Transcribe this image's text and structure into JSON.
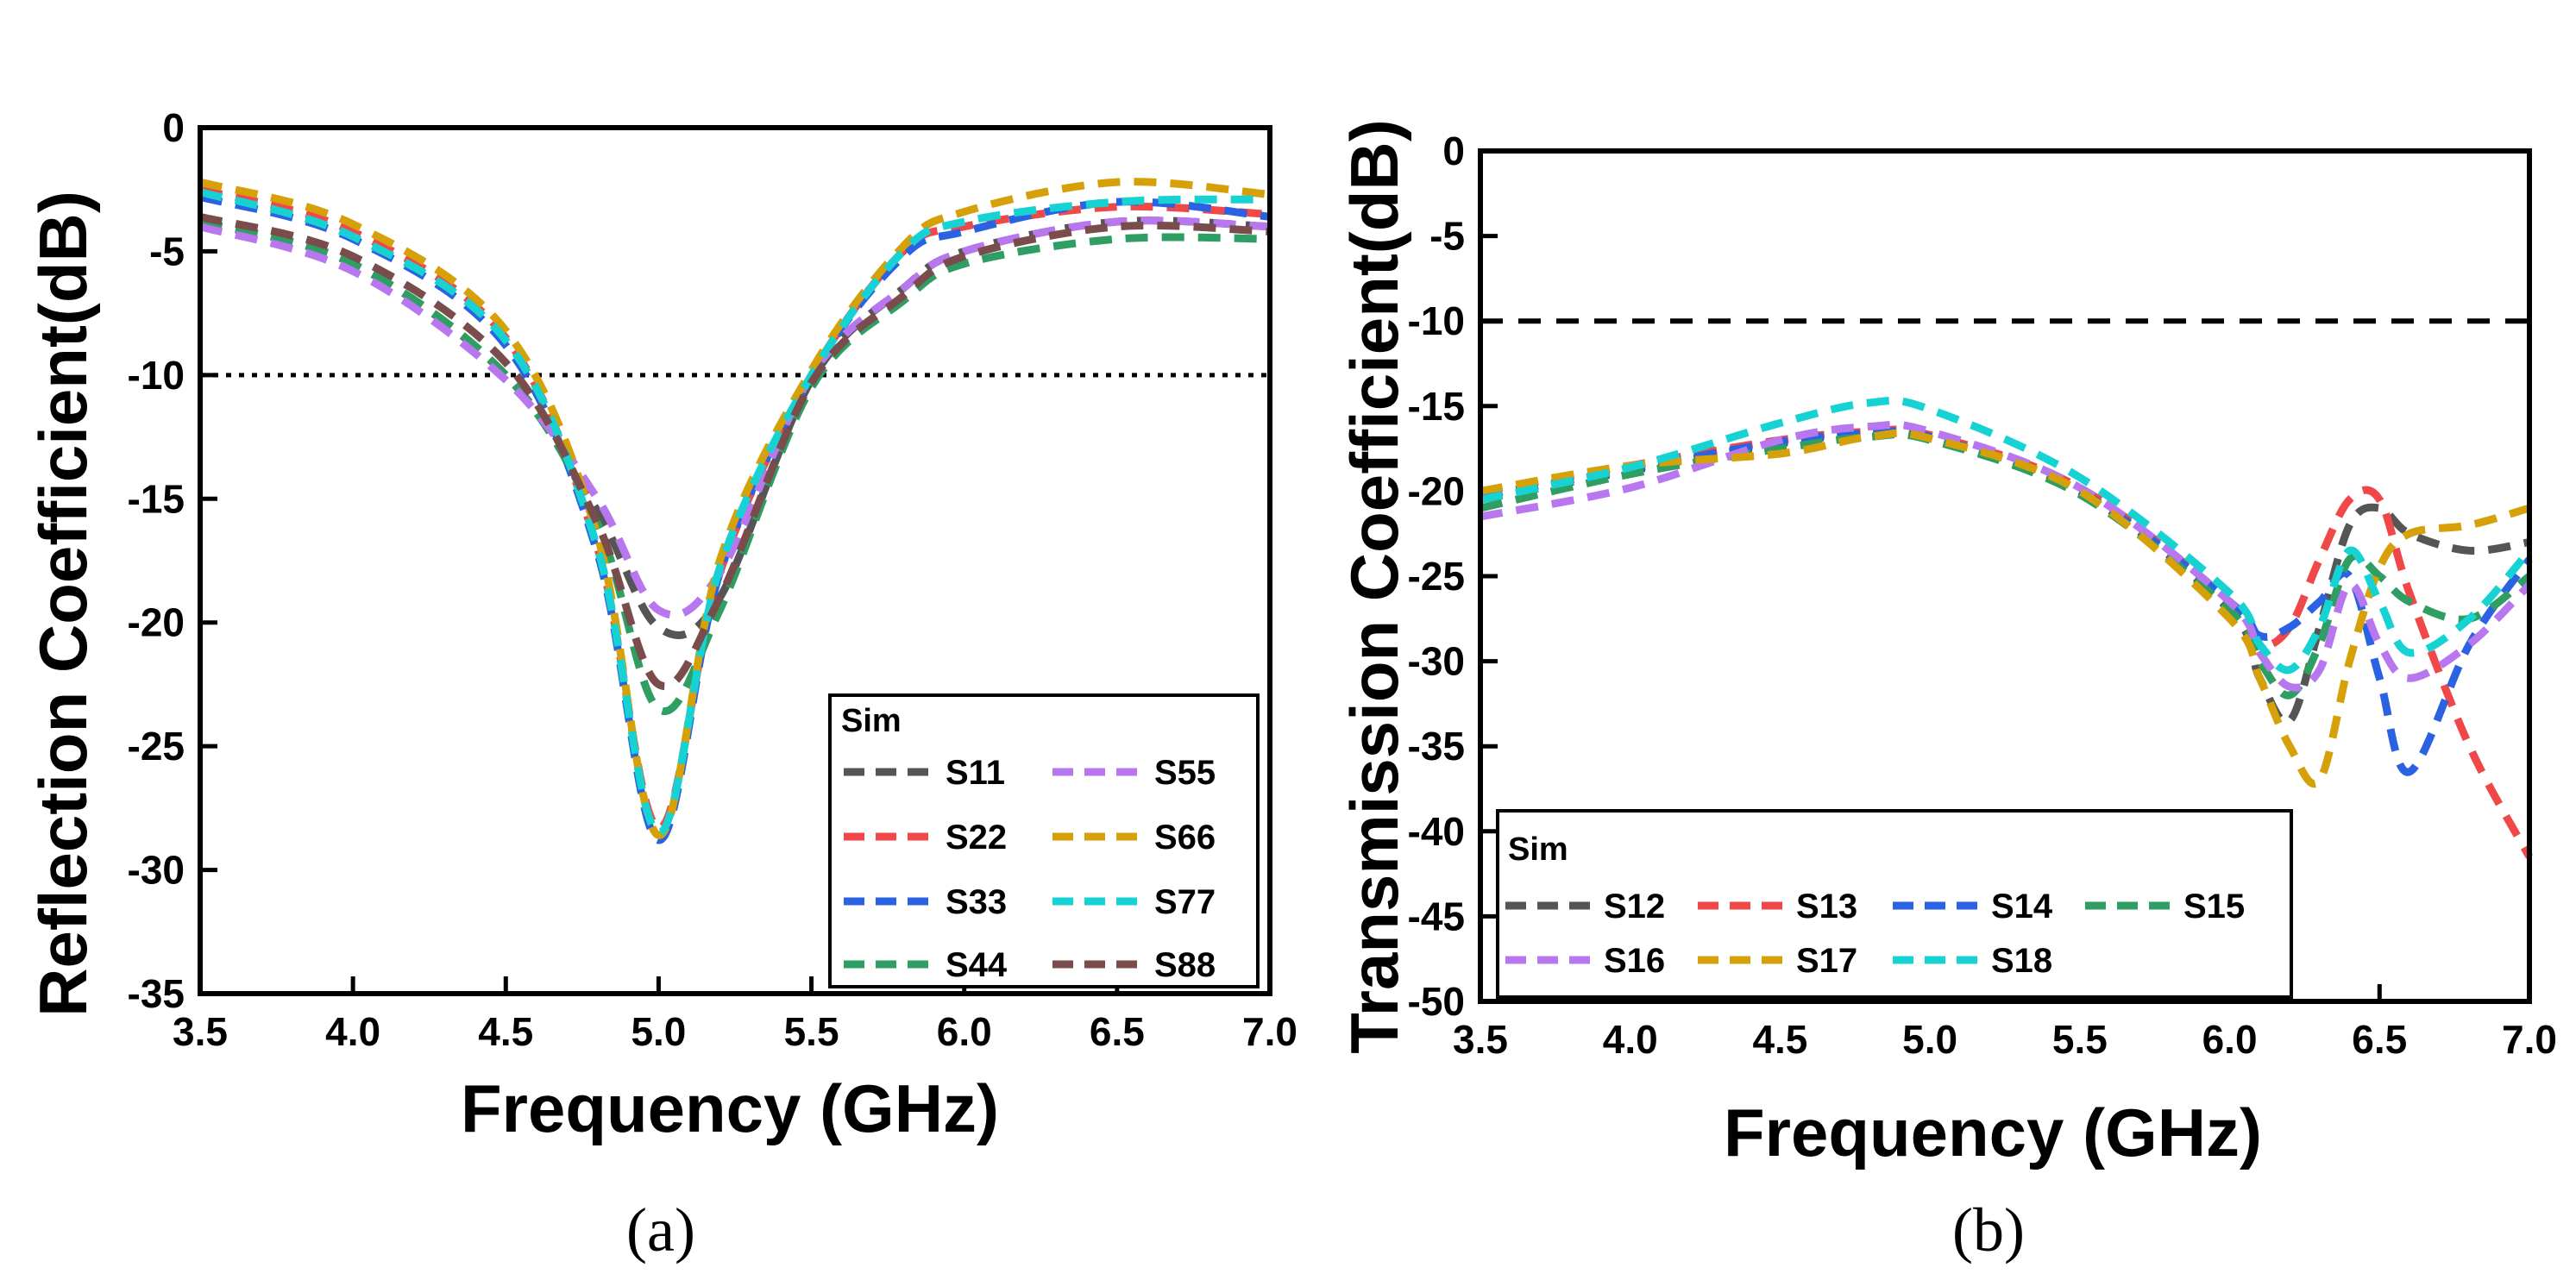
{
  "colors": {
    "S11": "#555555",
    "S22": "#f04848",
    "S33": "#2a62e2",
    "S44": "#2e9e62",
    "S55": "#b877ee",
    "S66": "#d6a008",
    "S77": "#16d2d2",
    "S88": "#7a4c4c",
    "S12": "#555555",
    "S13": "#f04848",
    "S14": "#2a62e2",
    "S15": "#2e9e62",
    "S16": "#b877ee",
    "S17": "#d6a008",
    "S18": "#16d2d2"
  },
  "captions": {
    "a": "(a)",
    "b": "(b)"
  },
  "chart_data": [
    {
      "id": "a",
      "type": "line",
      "xlabel": "Frequency (GHz)",
      "ylabel": "Reflection Coefficient(dB)",
      "xlim": [
        3.5,
        7.0
      ],
      "ylim": [
        -35,
        0
      ],
      "xticks": [
        3.5,
        4.0,
        4.5,
        5.0,
        5.5,
        6.0,
        6.5,
        7.0
      ],
      "xticklabels": [
        "3.5",
        "4.0",
        "4.5",
        "5.0",
        "5.5",
        "6.0",
        "6.5",
        "7.0"
      ],
      "yticks": [
        0,
        -5,
        -10,
        -15,
        -20,
        -25,
        -30,
        -35
      ],
      "yticklabels": [
        "0",
        "-5",
        "-10",
        "-15",
        "-20",
        "-25",
        "-30",
        "-35"
      ],
      "reference_line": {
        "y": -10,
        "style": "dotted"
      },
      "legend": {
        "title": "Sim",
        "position": "bottom-right",
        "columns": 2,
        "order": [
          "S11",
          "S55",
          "S22",
          "S66",
          "S33",
          "S77",
          "S44",
          "S88"
        ]
      },
      "series": [
        {
          "name": "S11",
          "x": [
            3.5,
            4.0,
            4.5,
            4.8,
            5.0,
            5.2,
            5.5,
            5.8,
            6.0,
            6.5,
            7.0
          ],
          "values": [
            -3.8,
            -5.5,
            -10.0,
            -15.5,
            -20.2,
            -19.0,
            -10.2,
            -6.5,
            -5.0,
            -3.8,
            -4.0
          ]
        },
        {
          "name": "S22",
          "x": [
            3.5,
            4.0,
            4.5,
            4.8,
            5.0,
            5.2,
            5.5,
            5.8,
            6.0,
            6.5,
            7.0
          ],
          "values": [
            -2.5,
            -4.2,
            -8.5,
            -17.0,
            -28.3,
            -18.0,
            -10.0,
            -5.0,
            -4.0,
            -3.2,
            -3.5
          ]
        },
        {
          "name": "S33",
          "x": [
            3.5,
            4.0,
            4.5,
            4.8,
            5.0,
            5.2,
            5.5,
            5.8,
            6.0,
            6.5,
            7.0
          ],
          "values": [
            -2.8,
            -4.5,
            -8.8,
            -17.2,
            -28.8,
            -18.0,
            -10.0,
            -5.2,
            -4.2,
            -3.0,
            -3.6
          ]
        },
        {
          "name": "S44",
          "x": [
            3.5,
            4.0,
            4.5,
            4.8,
            5.0,
            5.2,
            5.5,
            5.8,
            6.0,
            6.5,
            7.0
          ],
          "values": [
            -3.8,
            -5.5,
            -10.0,
            -16.0,
            -23.5,
            -19.5,
            -10.5,
            -7.0,
            -5.5,
            -4.5,
            -4.5
          ]
        },
        {
          "name": "S55",
          "x": [
            3.5,
            4.0,
            4.5,
            4.8,
            5.0,
            5.2,
            5.5,
            5.8,
            6.0,
            6.5,
            7.0
          ],
          "values": [
            -4.0,
            -5.8,
            -10.2,
            -15.0,
            -19.5,
            -18.0,
            -10.0,
            -6.5,
            -5.0,
            -3.8,
            -4.0
          ]
        },
        {
          "name": "S66",
          "x": [
            3.5,
            4.0,
            4.5,
            4.8,
            5.0,
            5.2,
            5.5,
            5.8,
            6.0,
            6.5,
            7.0
          ],
          "values": [
            -2.2,
            -3.9,
            -8.2,
            -16.5,
            -28.6,
            -17.5,
            -9.8,
            -4.8,
            -3.4,
            -2.2,
            -2.7
          ]
        },
        {
          "name": "S77",
          "x": [
            3.5,
            4.0,
            4.5,
            4.8,
            5.0,
            5.2,
            5.5,
            5.8,
            6.0,
            6.5,
            7.0
          ],
          "values": [
            -2.6,
            -4.4,
            -8.6,
            -17.0,
            -28.5,
            -17.8,
            -10.0,
            -5.0,
            -3.8,
            -3.0,
            -2.9
          ]
        },
        {
          "name": "S88",
          "x": [
            3.5,
            4.0,
            4.5,
            4.8,
            5.0,
            5.2,
            5.5,
            5.8,
            6.0,
            6.5,
            7.0
          ],
          "values": [
            -3.6,
            -5.2,
            -9.5,
            -16.0,
            -22.5,
            -19.0,
            -10.3,
            -6.8,
            -5.2,
            -4.0,
            -4.2
          ]
        }
      ]
    },
    {
      "id": "b",
      "type": "line",
      "xlabel": "Frequency (GHz)",
      "ylabel": "Transmission Coefficient(dB)",
      "xlim": [
        3.5,
        7.0
      ],
      "ylim": [
        -50,
        0
      ],
      "xticks": [
        3.5,
        4.0,
        4.5,
        5.0,
        5.5,
        6.0,
        6.5,
        7.0
      ],
      "xticklabels": [
        "3.5",
        "4.0",
        "4.5",
        "5.0",
        "5.5",
        "6.0",
        "6.5",
        "7.0"
      ],
      "yticks": [
        0,
        -5,
        -10,
        -15,
        -20,
        -25,
        -30,
        -35,
        -40,
        -45,
        -50
      ],
      "yticklabels": [
        "0",
        "-5",
        "-10",
        "-15",
        "-20",
        "-25",
        "-30",
        "-35",
        "-40",
        "-45",
        "-50"
      ],
      "reference_line": {
        "y": -10,
        "style": "dashed"
      },
      "legend": {
        "title": "Sim",
        "position": "bottom-left",
        "columns": 4,
        "order": [
          "S12",
          "S13",
          "S14",
          "S15",
          "S16",
          "S17",
          "S18"
        ]
      },
      "series": [
        {
          "name": "S12",
          "x": [
            3.5,
            4.0,
            4.5,
            4.8,
            5.0,
            5.5,
            6.0,
            6.1,
            6.2,
            6.3,
            6.4,
            6.5,
            6.6,
            6.8,
            7.0
          ],
          "values": [
            -20.5,
            -18.8,
            -17.2,
            -16.6,
            -16.8,
            -20.0,
            -27.0,
            -31.0,
            -33.5,
            -28.0,
            -22.0,
            -21.0,
            -22.5,
            -23.5,
            -23.0
          ]
        },
        {
          "name": "S13",
          "x": [
            3.5,
            4.0,
            4.5,
            4.8,
            5.0,
            5.5,
            6.0,
            6.1,
            6.2,
            6.3,
            6.4,
            6.5,
            6.6,
            6.8,
            7.0
          ],
          "values": [
            -20.0,
            -18.5,
            -17.0,
            -16.5,
            -16.7,
            -19.8,
            -26.5,
            -29.0,
            -28.0,
            -24.0,
            -20.5,
            -20.5,
            -26.0,
            -35.0,
            -41.5
          ]
        },
        {
          "name": "S14",
          "x": [
            3.5,
            4.0,
            4.5,
            4.8,
            5.0,
            5.5,
            6.0,
            6.1,
            6.2,
            6.3,
            6.4,
            6.5,
            6.6,
            6.8,
            7.0
          ],
          "values": [
            -20.3,
            -18.7,
            -17.1,
            -16.6,
            -16.8,
            -20.0,
            -26.5,
            -28.5,
            -28.0,
            -26.5,
            -25.0,
            -31.0,
            -36.5,
            -29.0,
            -24.0
          ]
        },
        {
          "name": "S15",
          "x": [
            3.5,
            4.0,
            4.5,
            4.8,
            5.0,
            5.5,
            6.0,
            6.1,
            6.2,
            6.3,
            6.4,
            6.5,
            6.6,
            6.8,
            7.0
          ],
          "values": [
            -21.0,
            -19.0,
            -17.5,
            -16.8,
            -17.0,
            -20.2,
            -27.0,
            -30.0,
            -32.0,
            -29.0,
            -24.0,
            -25.0,
            -26.5,
            -27.5,
            -25.0
          ]
        },
        {
          "name": "S16",
          "x": [
            3.5,
            4.0,
            4.5,
            4.8,
            5.0,
            5.5,
            6.0,
            6.1,
            6.2,
            6.3,
            6.4,
            6.5,
            6.6,
            6.8,
            7.0
          ],
          "values": [
            -21.5,
            -19.8,
            -17.0,
            -16.2,
            -16.5,
            -19.8,
            -26.5,
            -29.5,
            -31.5,
            -30.5,
            -25.5,
            -29.0,
            -31.0,
            -29.0,
            -25.5
          ]
        },
        {
          "name": "S17",
          "x": [
            3.5,
            4.0,
            4.5,
            4.8,
            5.0,
            5.5,
            6.0,
            6.1,
            6.2,
            6.3,
            6.4,
            6.5,
            6.6,
            6.8,
            7.0
          ],
          "values": [
            -20.0,
            -18.5,
            -17.8,
            -16.8,
            -16.9,
            -20.0,
            -27.5,
            -31.0,
            -35.0,
            -37.0,
            -30.0,
            -24.5,
            -22.5,
            -22.0,
            -21.0
          ]
        },
        {
          "name": "S18",
          "x": [
            3.5,
            4.0,
            4.5,
            4.8,
            5.0,
            5.5,
            6.0,
            6.1,
            6.2,
            6.3,
            6.4,
            6.5,
            6.6,
            6.8,
            7.0
          ],
          "values": [
            -20.5,
            -18.6,
            -16.0,
            -14.8,
            -15.2,
            -19.2,
            -26.0,
            -29.0,
            -30.5,
            -28.0,
            -23.5,
            -26.5,
            -29.5,
            -27.5,
            -23.5
          ]
        }
      ]
    }
  ]
}
